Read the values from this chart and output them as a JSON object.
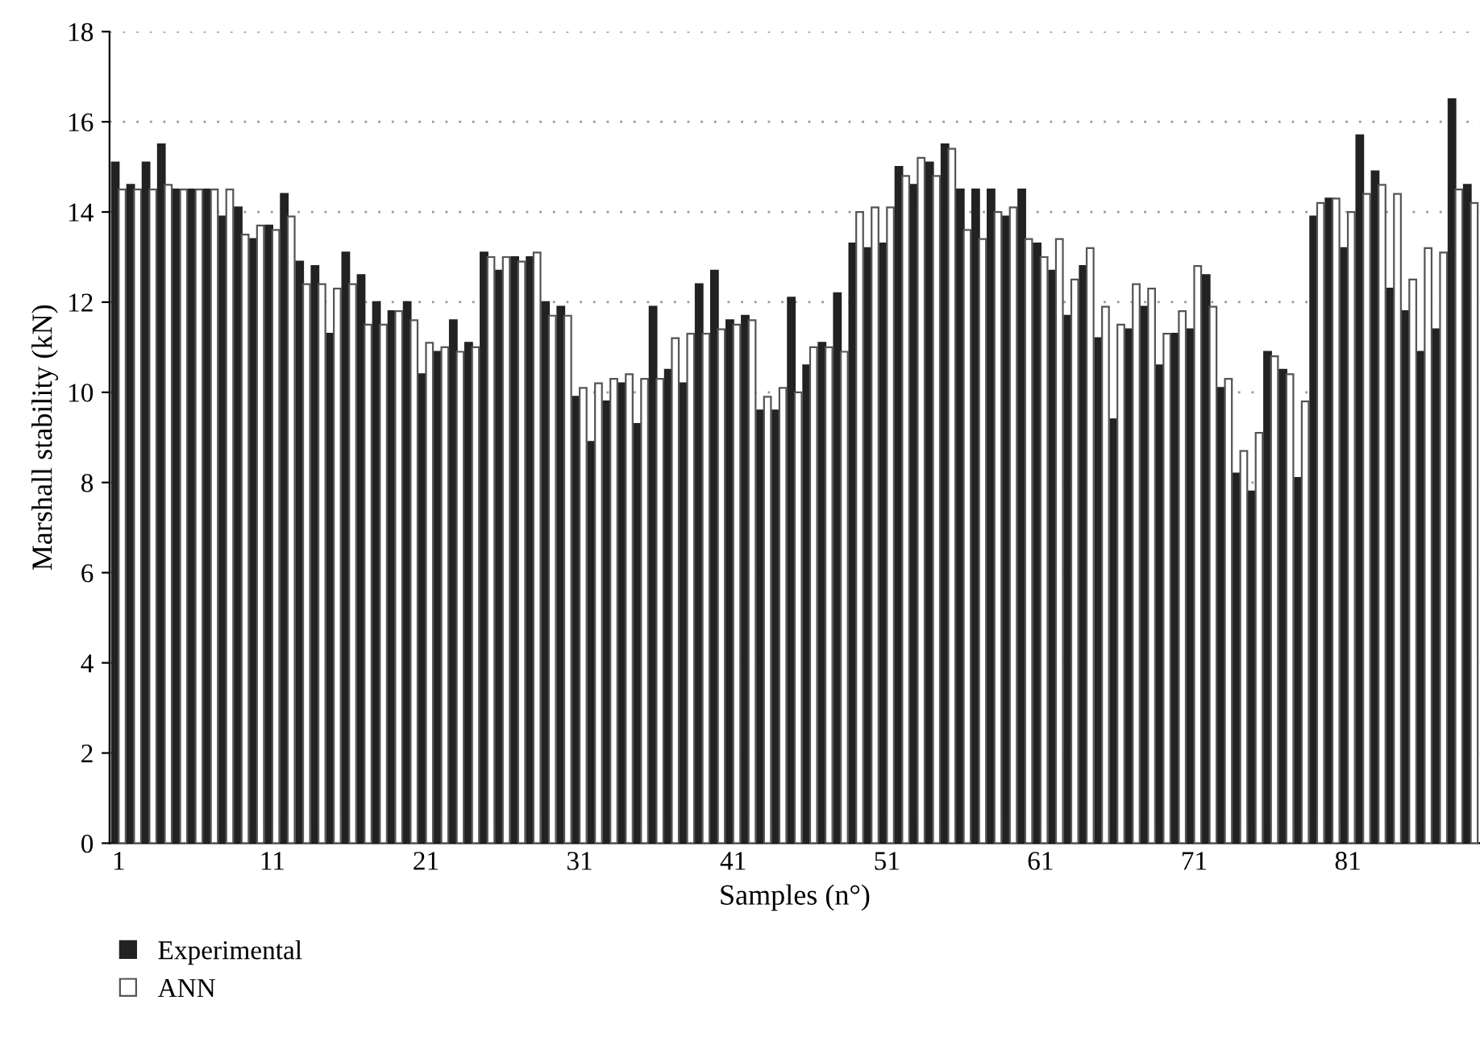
{
  "chart_data": {
    "type": "bar",
    "xlabel": "Samples (n°)",
    "ylabel": "Marshall stability (kN)",
    "categories": [
      "1",
      null,
      null,
      null,
      null,
      null,
      null,
      null,
      null,
      null,
      "11",
      null,
      null,
      null,
      null,
      null,
      null,
      null,
      null,
      null,
      "21",
      null,
      null,
      null,
      null,
      null,
      null,
      null,
      null,
      null,
      "31",
      null,
      null,
      null,
      null,
      null,
      null,
      null,
      null,
      null,
      "41",
      null,
      null,
      null,
      null,
      null,
      null,
      null,
      null,
      null,
      "51",
      null,
      null,
      null,
      null,
      null,
      null,
      null,
      null,
      null,
      "61",
      null,
      null,
      null,
      null,
      null,
      null,
      null,
      null,
      null,
      "71",
      null,
      null,
      null,
      null,
      null,
      null,
      null,
      null,
      null,
      "81",
      null,
      null,
      null,
      null,
      null,
      null,
      null,
      null
    ],
    "series": [
      {
        "name": "Experimental",
        "color": "#222222",
        "values": [
          15.1,
          14.6,
          15.1,
          15.5,
          14.5,
          14.5,
          14.5,
          13.9,
          14.1,
          13.4,
          13.7,
          14.4,
          12.9,
          12.8,
          11.3,
          13.1,
          12.6,
          12.0,
          11.8,
          12.0,
          10.4,
          10.9,
          11.6,
          11.1,
          13.1,
          12.7,
          13.0,
          13.0,
          12.0,
          11.9,
          9.9,
          8.9,
          9.8,
          10.2,
          9.3,
          11.9,
          10.5,
          10.2,
          12.4,
          12.7,
          11.6,
          11.7,
          9.6,
          9.6,
          12.1,
          10.6,
          11.1,
          12.2,
          13.3,
          13.2,
          13.3,
          15.0,
          14.6,
          15.1,
          15.5,
          14.5,
          14.5,
          14.5,
          13.9,
          14.5,
          13.3,
          12.7,
          11.7,
          12.8,
          11.2,
          9.4,
          11.4,
          11.9,
          10.6,
          11.3,
          11.4,
          12.6,
          10.1,
          8.2,
          7.8,
          10.9,
          10.5,
          8.1,
          13.9,
          14.3,
          13.2,
          15.7,
          14.9,
          12.3,
          11.8,
          10.9,
          11.4,
          16.5,
          14.6
        ]
      },
      {
        "name": "ANN",
        "color": "#ffffff",
        "values": [
          14.5,
          14.5,
          14.5,
          14.6,
          14.5,
          14.5,
          14.5,
          14.5,
          13.5,
          13.7,
          13.6,
          13.9,
          12.4,
          12.4,
          12.3,
          12.4,
          11.5,
          11.5,
          11.8,
          11.6,
          11.1,
          11.0,
          10.9,
          11.0,
          13.0,
          13.0,
          12.9,
          13.1,
          11.7,
          11.7,
          10.1,
          10.2,
          10.3,
          10.4,
          10.3,
          10.3,
          11.2,
          11.3,
          11.3,
          11.4,
          11.5,
          11.6,
          9.9,
          10.1,
          10.0,
          11.0,
          11.0,
          10.9,
          14.0,
          14.1,
          14.1,
          14.8,
          15.2,
          14.8,
          15.4,
          13.6,
          13.4,
          14.0,
          14.1,
          13.4,
          13.0,
          13.4,
          12.5,
          13.2,
          11.9,
          11.5,
          12.4,
          12.3,
          11.3,
          11.8,
          12.8,
          11.9,
          10.3,
          8.7,
          9.1,
          10.8,
          10.4,
          9.8,
          14.2,
          14.3,
          14.0,
          14.4,
          14.6,
          14.4,
          12.5,
          13.2,
          13.1,
          14.5,
          14.2
        ]
      }
    ],
    "ylim": [
      0,
      18
    ],
    "yticks": [
      0,
      2,
      4,
      6,
      8,
      10,
      12,
      14,
      16,
      18
    ],
    "grid": "y",
    "legend": "bottom left"
  }
}
